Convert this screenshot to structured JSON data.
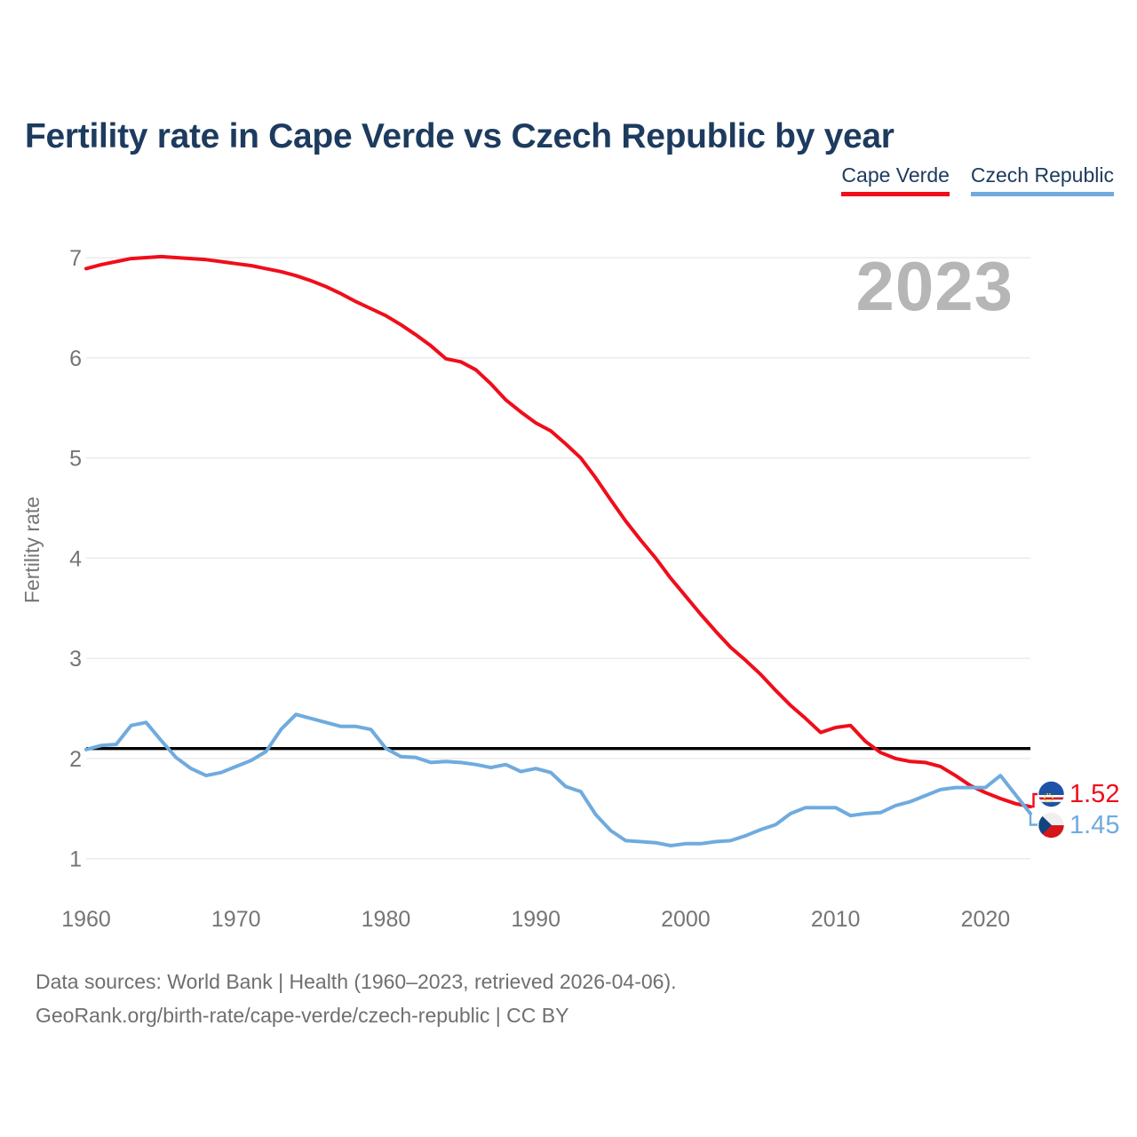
{
  "title": "Fertility rate in Cape Verde vs Czech Republic by year",
  "watermark": "2023",
  "legend": [
    {
      "label": "Cape Verde",
      "color": "#ef0e1a"
    },
    {
      "label": "Czech Republic",
      "color": "#6fabde"
    }
  ],
  "footer": {
    "line1": "Data sources: World Bank | Health (1960–2023, retrieved 2026-04-06).",
    "line2": "GeoRank.org/birth-rate/cape-verde/czech-republic | CC BY"
  },
  "chart_data": {
    "type": "line",
    "title": "Fertility rate in Cape Verde vs Czech Republic by year",
    "xlabel": "",
    "ylabel": "Fertility rate",
    "xlim": [
      1960,
      2023
    ],
    "ylim": [
      1,
      7
    ],
    "grid": "horizontal",
    "legend_position": "top-right",
    "x_ticks": [
      1960,
      1970,
      1980,
      1990,
      2000,
      2010,
      2020
    ],
    "y_ticks": [
      1,
      2,
      3,
      4,
      5,
      6,
      7
    ],
    "reference_line": {
      "value": 2.1,
      "color": "#000000"
    },
    "x": [
      1960,
      1961,
      1962,
      1963,
      1964,
      1965,
      1966,
      1967,
      1968,
      1969,
      1970,
      1971,
      1972,
      1973,
      1974,
      1975,
      1976,
      1977,
      1978,
      1979,
      1980,
      1981,
      1982,
      1983,
      1984,
      1985,
      1986,
      1987,
      1988,
      1989,
      1990,
      1991,
      1992,
      1993,
      1994,
      1995,
      1996,
      1997,
      1998,
      1999,
      2000,
      2001,
      2002,
      2003,
      2004,
      2005,
      2006,
      2007,
      2008,
      2009,
      2010,
      2011,
      2012,
      2013,
      2014,
      2015,
      2016,
      2017,
      2018,
      2019,
      2020,
      2021,
      2022,
      2023
    ],
    "series": [
      {
        "name": "Cape Verde",
        "color": "#ef0e1a",
        "end_label": "1.52",
        "flag_icon": "cape-verde-flag-icon",
        "values": [
          6.89,
          6.93,
          6.96,
          6.99,
          7.0,
          7.01,
          7.0,
          6.99,
          6.98,
          6.96,
          6.94,
          6.92,
          6.89,
          6.86,
          6.82,
          6.77,
          6.71,
          6.64,
          6.56,
          6.49,
          6.42,
          6.33,
          6.23,
          6.12,
          5.99,
          5.96,
          5.88,
          5.74,
          5.58,
          5.46,
          5.35,
          5.27,
          5.14,
          5.0,
          4.8,
          4.58,
          4.37,
          4.18,
          4.0,
          3.8,
          3.62,
          3.44,
          3.27,
          3.11,
          2.98,
          2.84,
          2.68,
          2.53,
          2.4,
          2.26,
          2.31,
          2.33,
          2.17,
          2.06,
          2.0,
          1.97,
          1.96,
          1.92,
          1.83,
          1.73,
          1.66,
          1.6,
          1.55,
          1.52
        ]
      },
      {
        "name": "Czech Republic",
        "color": "#6fabde",
        "end_label": "1.45",
        "flag_icon": "czech-republic-flag-icon",
        "values": [
          2.09,
          2.13,
          2.14,
          2.33,
          2.36,
          2.18,
          2.01,
          1.9,
          1.83,
          1.86,
          1.92,
          1.98,
          2.07,
          2.29,
          2.44,
          2.4,
          2.36,
          2.32,
          2.32,
          2.29,
          2.1,
          2.02,
          2.01,
          1.96,
          1.97,
          1.96,
          1.94,
          1.91,
          1.94,
          1.87,
          1.9,
          1.86,
          1.72,
          1.67,
          1.44,
          1.28,
          1.18,
          1.17,
          1.16,
          1.13,
          1.15,
          1.15,
          1.17,
          1.18,
          1.23,
          1.29,
          1.34,
          1.45,
          1.51,
          1.51,
          1.51,
          1.43,
          1.45,
          1.46,
          1.53,
          1.57,
          1.63,
          1.69,
          1.71,
          1.71,
          1.71,
          1.83,
          1.64,
          1.45
        ]
      }
    ]
  },
  "colors": {
    "title_navy": "#1d3b5e",
    "axis_gray": "#757575",
    "gridline": "#e9e9e9",
    "watermark_gray": "#b6b6b6",
    "reference_black": "#000000",
    "cape_verde_red": "#ef0e1a",
    "czech_blue": "#6fabde",
    "flag_cv_blue": "#1e52a8",
    "flag_cv_red": "#cf2027",
    "flag_cv_star": "#f7d117",
    "flag_cz_white": "#efefef",
    "flag_cz_red": "#d7141a",
    "flag_cz_blue": "#11457e"
  }
}
